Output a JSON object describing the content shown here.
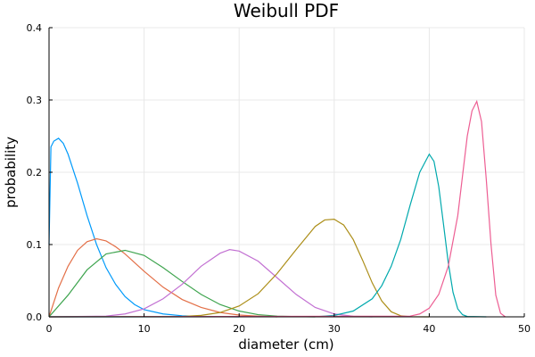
{
  "chart_data": {
    "type": "line",
    "title": "Weibull PDF",
    "xlabel": "diameter (cm)",
    "ylabel": "probability",
    "xlim": [
      0,
      50
    ],
    "ylim": [
      0,
      0.4
    ],
    "xticks": [
      "0",
      "10",
      "20",
      "30",
      "40",
      "50"
    ],
    "yticks": [
      "0.0",
      "0.1",
      "0.2",
      "0.3",
      "0.4"
    ],
    "grid": true,
    "legend": "none",
    "series": [
      {
        "color": "#009AFA",
        "x": [
          0,
          0.2,
          0.5,
          1,
          1.5,
          2,
          3,
          4,
          5,
          6,
          7,
          8,
          9,
          10,
          12,
          14,
          16,
          18,
          20
        ],
        "y": [
          0.1,
          0.235,
          0.243,
          0.247,
          0.24,
          0.225,
          0.185,
          0.14,
          0.1,
          0.068,
          0.045,
          0.028,
          0.017,
          0.01,
          0.004,
          0.0015,
          0.0005,
          0.0001,
          0
        ]
      },
      {
        "color": "#E36F47",
        "x": [
          0,
          1,
          2,
          3,
          4,
          5,
          6,
          7,
          8,
          10,
          12,
          14,
          16,
          18,
          20,
          22,
          24
        ],
        "y": [
          0,
          0.04,
          0.07,
          0.092,
          0.104,
          0.108,
          0.105,
          0.097,
          0.087,
          0.063,
          0.041,
          0.024,
          0.013,
          0.006,
          0.0025,
          0.001,
          0
        ]
      },
      {
        "color": "#3EA44E",
        "x": [
          0,
          2,
          4,
          6,
          8,
          10,
          12,
          14,
          16,
          18,
          20,
          22,
          24,
          26,
          28
        ],
        "y": [
          0,
          0.03,
          0.065,
          0.087,
          0.092,
          0.085,
          0.068,
          0.049,
          0.031,
          0.017,
          0.008,
          0.003,
          0.001,
          0.0003,
          0
        ]
      },
      {
        "color": "#C270D2",
        "x": [
          0,
          6,
          8,
          10,
          12,
          14,
          16,
          18,
          19,
          20,
          22,
          24,
          26,
          28,
          30,
          32,
          34
        ],
        "y": [
          0,
          0.001,
          0.004,
          0.011,
          0.025,
          0.045,
          0.07,
          0.088,
          0.093,
          0.091,
          0.077,
          0.054,
          0.031,
          0.013,
          0.004,
          0.0008,
          0
        ]
      },
      {
        "color": "#AC8E18",
        "x": [
          0,
          14,
          16,
          18,
          20,
          22,
          24,
          26,
          28,
          29,
          30,
          31,
          32,
          33,
          34,
          35,
          36,
          37,
          38,
          40
        ],
        "y": [
          0,
          0.0005,
          0.002,
          0.006,
          0.015,
          0.032,
          0.06,
          0.093,
          0.125,
          0.134,
          0.135,
          0.127,
          0.107,
          0.078,
          0.047,
          0.022,
          0.007,
          0.0015,
          0.0002,
          0
        ]
      },
      {
        "color": "#00A9AD",
        "x": [
          0,
          28,
          30,
          32,
          34,
          35,
          36,
          37,
          38,
          39,
          40,
          40.5,
          41,
          41.5,
          42,
          42.5,
          43,
          43.5,
          44,
          46
        ],
        "y": [
          0,
          0.0001,
          0.002,
          0.008,
          0.025,
          0.043,
          0.07,
          0.107,
          0.155,
          0.2,
          0.225,
          0.215,
          0.18,
          0.128,
          0.075,
          0.034,
          0.011,
          0.003,
          0.0005,
          0
        ]
      },
      {
        "color": "#ED5E93",
        "x": [
          0,
          38,
          39,
          40,
          41,
          42,
          43,
          43.5,
          44,
          44.5,
          45,
          45.5,
          46,
          46.5,
          47,
          47.5,
          48
        ],
        "y": [
          0,
          0.001,
          0.004,
          0.012,
          0.031,
          0.07,
          0.14,
          0.195,
          0.25,
          0.285,
          0.298,
          0.27,
          0.19,
          0.1,
          0.03,
          0.005,
          0
        ]
      }
    ]
  }
}
